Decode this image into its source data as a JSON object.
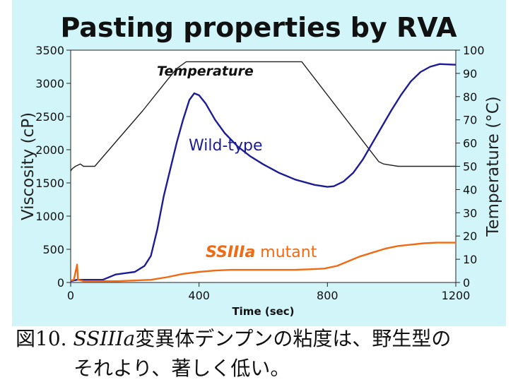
{
  "chart_data": {
    "type": "line",
    "title": "Pasting properties by RVA",
    "xlabel": "Time (sec)",
    "ylabel": "Viscosity (cP)",
    "y2label": "Temperature (°C)",
    "xlim": [
      0,
      1200
    ],
    "ylim": [
      0,
      3500
    ],
    "y2lim": [
      0,
      100
    ],
    "xticks": [
      "0",
      "400",
      "800",
      "1200"
    ],
    "yticks": [
      "0",
      "500",
      "1000",
      "1500",
      "2000",
      "2500",
      "3000",
      "3500"
    ],
    "y2ticks": [
      "0",
      "10",
      "20",
      "30",
      "40",
      "50",
      "60",
      "70",
      "80",
      "90",
      "100"
    ],
    "grid": false,
    "annotations": {
      "temperature": "Temperature",
      "wild": "Wild-type",
      "mutant_italic": "SSIIIa",
      "mutant_rest": " mutant"
    },
    "series": [
      {
        "name": "Temperature",
        "axis": "right",
        "color": "#222222",
        "points": [
          [
            0,
            48
          ],
          [
            5,
            49
          ],
          [
            15,
            50
          ],
          [
            30,
            51
          ],
          [
            40,
            50
          ],
          [
            75,
            50
          ],
          [
            150,
            62
          ],
          [
            225,
            74
          ],
          [
            300,
            87
          ],
          [
            330,
            92
          ],
          [
            360,
            95
          ],
          [
            720,
            95
          ],
          [
            960,
            52
          ],
          [
            975,
            51
          ],
          [
            1020,
            50
          ],
          [
            1200,
            50
          ]
        ]
      },
      {
        "name": "Wild-type",
        "color": "#1c1c96",
        "points": [
          [
            0,
            20
          ],
          [
            20,
            40
          ],
          [
            100,
            40
          ],
          [
            140,
            120
          ],
          [
            170,
            140
          ],
          [
            200,
            160
          ],
          [
            230,
            250
          ],
          [
            250,
            400
          ],
          [
            270,
            800
          ],
          [
            290,
            1300
          ],
          [
            310,
            1700
          ],
          [
            330,
            2100
          ],
          [
            350,
            2450
          ],
          [
            370,
            2750
          ],
          [
            385,
            2850
          ],
          [
            400,
            2820
          ],
          [
            420,
            2700
          ],
          [
            450,
            2450
          ],
          [
            480,
            2250
          ],
          [
            520,
            2050
          ],
          [
            560,
            1900
          ],
          [
            600,
            1780
          ],
          [
            650,
            1650
          ],
          [
            700,
            1550
          ],
          [
            760,
            1470
          ],
          [
            800,
            1440
          ],
          [
            820,
            1450
          ],
          [
            850,
            1520
          ],
          [
            880,
            1650
          ],
          [
            910,
            1850
          ],
          [
            940,
            2100
          ],
          [
            970,
            2350
          ],
          [
            1000,
            2600
          ],
          [
            1030,
            2830
          ],
          [
            1060,
            3030
          ],
          [
            1090,
            3170
          ],
          [
            1120,
            3250
          ],
          [
            1150,
            3290
          ],
          [
            1200,
            3280
          ]
        ]
      },
      {
        "name": "SSIIIa mutant",
        "color": "#f06a14",
        "points": [
          [
            0,
            30
          ],
          [
            10,
            40
          ],
          [
            20,
            270
          ],
          [
            23,
            40
          ],
          [
            40,
            20
          ],
          [
            150,
            20
          ],
          [
            250,
            40
          ],
          [
            300,
            80
          ],
          [
            350,
            130
          ],
          [
            400,
            160
          ],
          [
            450,
            180
          ],
          [
            500,
            190
          ],
          [
            600,
            190
          ],
          [
            700,
            190
          ],
          [
            750,
            200
          ],
          [
            790,
            210
          ],
          [
            830,
            250
          ],
          [
            870,
            330
          ],
          [
            900,
            390
          ],
          [
            940,
            450
          ],
          [
            980,
            510
          ],
          [
            1020,
            550
          ],
          [
            1060,
            570
          ],
          [
            1100,
            590
          ],
          [
            1140,
            600
          ],
          [
            1200,
            600
          ]
        ]
      }
    ]
  },
  "caption": {
    "line1_prefix": "図10. ",
    "line1_italic": "SSIIIa",
    "line1_suffix": "変異体デンプンの粘度は、野生型の",
    "line2": "それより、著しく低い。"
  }
}
